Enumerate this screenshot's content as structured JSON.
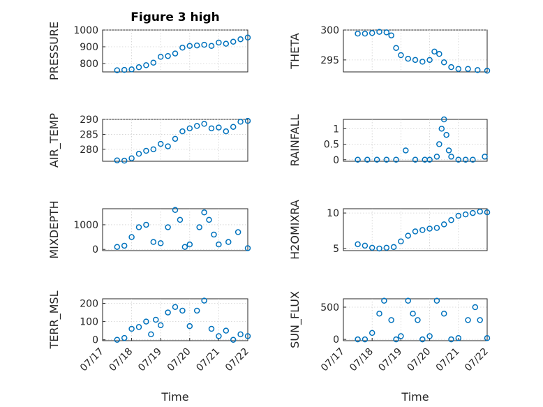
{
  "figure": {
    "title": "Figure 3 high",
    "marker_color": "#0072BD"
  },
  "chart_data": [
    {
      "type": "scatter",
      "title": "Figure 3 high",
      "xlabel": "",
      "ylabel": "PRESSURE",
      "xlim": [
        "07/17",
        "07/22"
      ],
      "ylim": [
        750,
        1000
      ],
      "yticks": [
        800,
        900,
        1000
      ],
      "grid": true,
      "x": [
        "07/17 12:00",
        "07/17 18:00",
        "07/18 00:00",
        "07/18 06:00",
        "07/18 12:00",
        "07/18 18:00",
        "07/19 00:00",
        "07/19 06:00",
        "07/19 12:00",
        "07/19 18:00",
        "07/20 00:00",
        "07/20 06:00",
        "07/20 12:00",
        "07/20 18:00",
        "07/21 00:00",
        "07/21 06:00",
        "07/21 12:00",
        "07/21 18:00",
        "07/22 00:00"
      ],
      "y": [
        760,
        762,
        765,
        778,
        790,
        805,
        840,
        845,
        860,
        895,
        905,
        908,
        912,
        905,
        925,
        918,
        930,
        945,
        955
      ]
    },
    {
      "type": "scatter",
      "title": "",
      "xlabel": "",
      "ylabel": "THETA",
      "xlim": [
        "07/17",
        "07/22"
      ],
      "ylim": [
        293,
        300
      ],
      "yticks": [
        295,
        300
      ],
      "grid": true,
      "x": [
        "07/17 12:00",
        "07/17 18:00",
        "07/18 00:00",
        "07/18 06:00",
        "07/18 12:00",
        "07/18 16:00",
        "07/18 20:00",
        "07/19 00:00",
        "07/19 06:00",
        "07/19 12:00",
        "07/19 18:00",
        "07/20 00:00",
        "07/20 04:00",
        "07/20 08:00",
        "07/20 12:00",
        "07/20 18:00",
        "07/21 00:00",
        "07/21 08:00",
        "07/21 16:00",
        "07/22 00:00"
      ],
      "y": [
        299.4,
        299.4,
        299.5,
        299.7,
        299.6,
        299.1,
        297.0,
        295.8,
        295.2,
        295.0,
        294.7,
        295.0,
        296.4,
        296.0,
        294.6,
        293.8,
        293.5,
        293.5,
        293.3,
        293.2
      ]
    },
    {
      "type": "scatter",
      "title": "",
      "xlabel": "",
      "ylabel": "AIR_TEMP",
      "xlim": [
        "07/17",
        "07/22"
      ],
      "ylim": [
        276,
        290
      ],
      "yticks": [
        280,
        285,
        290
      ],
      "grid": true,
      "x": [
        "07/17 12:00",
        "07/17 18:00",
        "07/18 00:00",
        "07/18 06:00",
        "07/18 12:00",
        "07/18 18:00",
        "07/19 00:00",
        "07/19 06:00",
        "07/19 12:00",
        "07/19 18:00",
        "07/20 00:00",
        "07/20 06:00",
        "07/20 12:00",
        "07/20 18:00",
        "07/21 00:00",
        "07/21 06:00",
        "07/21 12:00",
        "07/21 18:00",
        "07/22 00:00"
      ],
      "y": [
        276.3,
        276.2,
        277.0,
        278.5,
        279.5,
        280.0,
        281.8,
        281.0,
        283.5,
        286.0,
        287.0,
        287.8,
        288.5,
        287.0,
        287.3,
        286.0,
        287.5,
        289.2,
        289.5
      ]
    },
    {
      "type": "scatter",
      "title": "",
      "xlabel": "",
      "ylabel": "RAINFALL",
      "xlim": [
        "07/17",
        "07/22"
      ],
      "ylim": [
        -0.05,
        1.3
      ],
      "yticks": [
        0,
        0.5,
        1
      ],
      "grid": true,
      "x": [
        "07/17 12:00",
        "07/17 20:00",
        "07/18 04:00",
        "07/18 12:00",
        "07/18 20:00",
        "07/19 04:00",
        "07/19 12:00",
        "07/19 20:00",
        "07/20 00:00",
        "07/20 06:00",
        "07/20 08:00",
        "07/20 10:00",
        "07/20 12:00",
        "07/20 14:00",
        "07/20 16:00",
        "07/20 18:00",
        "07/21 00:00",
        "07/21 06:00",
        "07/21 12:00",
        "07/21 22:00"
      ],
      "y": [
        0,
        0,
        0,
        0,
        0,
        0.3,
        0,
        0,
        0,
        0.1,
        0.5,
        1.0,
        1.3,
        0.8,
        0.3,
        0.1,
        0,
        0,
        0,
        0.1
      ]
    },
    {
      "type": "scatter",
      "title": "",
      "xlabel": "",
      "ylabel": "MIXDEPTH",
      "xlim": [
        "07/17",
        "07/22"
      ],
      "ylim": [
        -50,
        1650
      ],
      "yticks": [
        0,
        1000
      ],
      "grid": true,
      "x": [
        "07/17 12:00",
        "07/17 18:00",
        "07/18 00:00",
        "07/18 06:00",
        "07/18 12:00",
        "07/18 18:00",
        "07/19 00:00",
        "07/19 06:00",
        "07/19 12:00",
        "07/19 16:00",
        "07/19 20:00",
        "07/20 00:00",
        "07/20 08:00",
        "07/20 12:00",
        "07/20 16:00",
        "07/20 20:00",
        "07/21 00:00",
        "07/21 08:00",
        "07/21 16:00",
        "07/22 00:00"
      ],
      "y": [
        100,
        150,
        500,
        900,
        1000,
        300,
        250,
        900,
        1600,
        1200,
        100,
        200,
        900,
        1500,
        1200,
        600,
        200,
        300,
        700,
        50
      ]
    },
    {
      "type": "scatter",
      "title": "",
      "xlabel": "",
      "ylabel": "H2OMIXRA",
      "xlim": [
        "07/17",
        "07/22"
      ],
      "ylim": [
        4.7,
        10.6
      ],
      "yticks": [
        5,
        10
      ],
      "grid": true,
      "x": [
        "07/17 12:00",
        "07/17 18:00",
        "07/18 00:00",
        "07/18 06:00",
        "07/18 12:00",
        "07/18 18:00",
        "07/19 00:00",
        "07/19 06:00",
        "07/19 12:00",
        "07/19 18:00",
        "07/20 00:00",
        "07/20 06:00",
        "07/20 12:00",
        "07/20 18:00",
        "07/21 00:00",
        "07/21 06:00",
        "07/21 12:00",
        "07/21 18:00",
        "07/22 00:00"
      ],
      "y": [
        5.6,
        5.4,
        5.1,
        5.0,
        5.1,
        5.2,
        6.0,
        6.8,
        7.4,
        7.6,
        7.8,
        7.9,
        8.4,
        9.0,
        9.6,
        9.8,
        10.0,
        10.2,
        10.1
      ]
    },
    {
      "type": "scatter",
      "title": "",
      "xlabel": "Time",
      "ylabel": "TERR_MSL",
      "xlim": [
        "07/17",
        "07/22"
      ],
      "ylim": [
        -5,
        225
      ],
      "yticks": [
        0,
        100,
        200
      ],
      "xticks": [
        "07/17",
        "07/18",
        "07/19",
        "07/20",
        "07/21",
        "07/22"
      ],
      "grid": true,
      "x": [
        "07/17 12:00",
        "07/17 18:00",
        "07/18 00:00",
        "07/18 06:00",
        "07/18 12:00",
        "07/18 16:00",
        "07/18 20:00",
        "07/19 00:00",
        "07/19 06:00",
        "07/19 12:00",
        "07/19 18:00",
        "07/20 00:00",
        "07/20 06:00",
        "07/20 12:00",
        "07/20 18:00",
        "07/21 00:00",
        "07/21 06:00",
        "07/21 12:00",
        "07/21 18:00",
        "07/22 00:00"
      ],
      "y": [
        0,
        10,
        60,
        70,
        100,
        30,
        110,
        80,
        150,
        180,
        160,
        75,
        160,
        215,
        60,
        20,
        50,
        0,
        30,
        20
      ]
    },
    {
      "type": "scatter",
      "title": "",
      "xlabel": "Time",
      "ylabel": "SUN_FLUX",
      "xlim": [
        "07/17",
        "07/22"
      ],
      "ylim": [
        -20,
        630
      ],
      "yticks": [
        0,
        500
      ],
      "xticks": [
        "07/17",
        "07/18",
        "07/19",
        "07/20",
        "07/21",
        "07/22"
      ],
      "grid": true,
      "x": [
        "07/17 12:00",
        "07/17 18:00",
        "07/18 00:00",
        "07/18 06:00",
        "07/18 10:00",
        "07/18 16:00",
        "07/18 20:00",
        "07/19 00:00",
        "07/19 06:00",
        "07/19 10:00",
        "07/19 14:00",
        "07/19 18:00",
        "07/20 00:00",
        "07/20 06:00",
        "07/20 12:00",
        "07/20 18:00",
        "07/21 00:00",
        "07/21 08:00",
        "07/21 14:00",
        "07/21 18:00",
        "07/22 00:00"
      ],
      "y": [
        0,
        0,
        100,
        400,
        600,
        300,
        0,
        50,
        600,
        400,
        300,
        0,
        50,
        600,
        400,
        0,
        20,
        300,
        500,
        300,
        20
      ]
    }
  ]
}
